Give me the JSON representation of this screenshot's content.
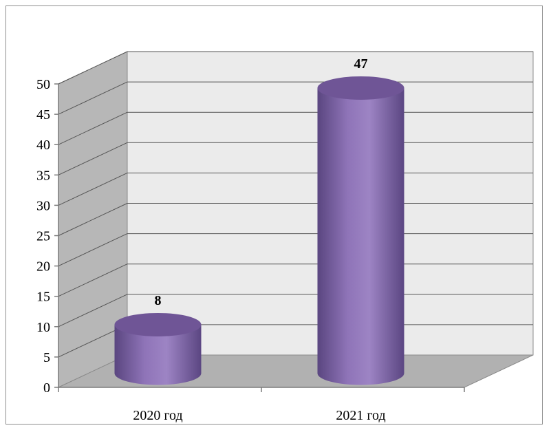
{
  "chart_data": {
    "type": "bar",
    "style": "3d-cylinder",
    "categories": [
      "2020 год",
      "2021 год"
    ],
    "values": [
      8,
      47
    ],
    "data_labels": [
      "8",
      "47"
    ],
    "ylim": [
      0,
      50
    ],
    "ytick_step": 5,
    "ytick_labels": [
      "0",
      "5",
      "10",
      "15",
      "20",
      "25",
      "30",
      "35",
      "40",
      "45",
      "50"
    ],
    "grid": true,
    "legend": "none",
    "title": "",
    "xlabel": "",
    "ylabel": "",
    "colors": {
      "bar": "#8a6fb0",
      "bar_dark": "#5b4680",
      "bar_top": "#6f5596",
      "back_wall": "#ebebeb",
      "side_wall": "#b7b7b7",
      "floor": "#b1b1b1",
      "grid": "#555555"
    }
  }
}
